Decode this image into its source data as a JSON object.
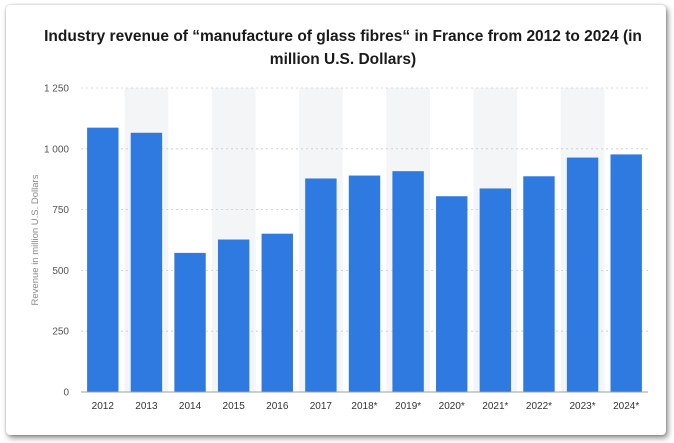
{
  "chart_data": {
    "type": "bar",
    "title": "Industry revenue of “manufacture of glass fibres“ in France from 2012 to 2024 (in million U.S. Dollars)",
    "xlabel": "",
    "ylabel": "Revenue in million U.S. Dollars",
    "categories": [
      "2012",
      "2013",
      "2014",
      "2015",
      "2016",
      "2017",
      "2018*",
      "2019*",
      "2020*",
      "2021*",
      "2022*",
      "2023*",
      "2024*"
    ],
    "values": [
      1087,
      1066,
      572,
      627,
      651,
      878,
      890,
      908,
      805,
      837,
      887,
      964,
      977
    ],
    "ylim": [
      0,
      1250
    ],
    "yticks": [
      0,
      250,
      500,
      750,
      1000,
      1250
    ],
    "ytick_labels": [
      "0",
      "250",
      "500",
      "750",
      "1 000",
      "1 250"
    ],
    "grid": true,
    "legend": "none",
    "bar_color": "#2f7ae0"
  }
}
